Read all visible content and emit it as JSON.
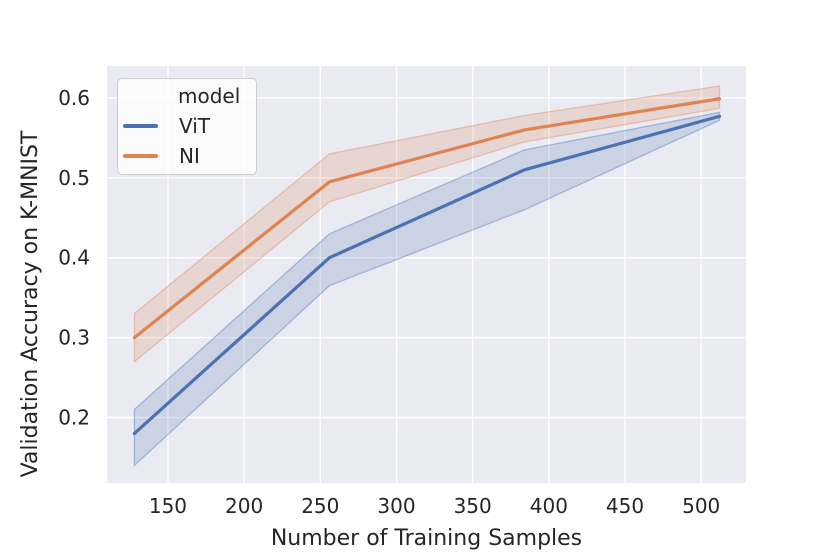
{
  "chart_data": {
    "type": "line",
    "title": "",
    "xlabel": "Number of Training Samples",
    "ylabel": "Validation Accuracy on K-MNIST",
    "x": [
      128,
      256,
      384,
      512
    ],
    "series": [
      {
        "name": "ViT",
        "color": "#4c72b0",
        "values": [
          0.18,
          0.4,
          0.51,
          0.577
        ],
        "band_lower": [
          0.14,
          0.365,
          0.46,
          0.572
        ],
        "band_upper": [
          0.21,
          0.43,
          0.535,
          0.582
        ]
      },
      {
        "name": "NI",
        "color": "#dd8452",
        "values": [
          0.3,
          0.495,
          0.56,
          0.599
        ],
        "band_lower": [
          0.27,
          0.47,
          0.545,
          0.587
        ],
        "band_upper": [
          0.33,
          0.53,
          0.578,
          0.615
        ]
      }
    ],
    "legend": {
      "title": "model",
      "position": "upper left"
    },
    "xlim": [
      110,
      529.4
    ],
    "ylim": [
      0.118,
      0.64
    ],
    "xticks": [
      150,
      200,
      250,
      300,
      350,
      400,
      450,
      500
    ],
    "yticks": [
      0.2,
      0.3,
      0.4,
      0.5,
      0.6
    ],
    "grid": true,
    "band_alpha": 0.2,
    "colors": {
      "figure_bg": "#ffffff",
      "plot_bg": "#eaeaf2",
      "grid": "#ffffff",
      "text": "#262626",
      "legend_bg": "rgba(255,255,255,0.78)",
      "legend_border": "#cccccc"
    }
  }
}
